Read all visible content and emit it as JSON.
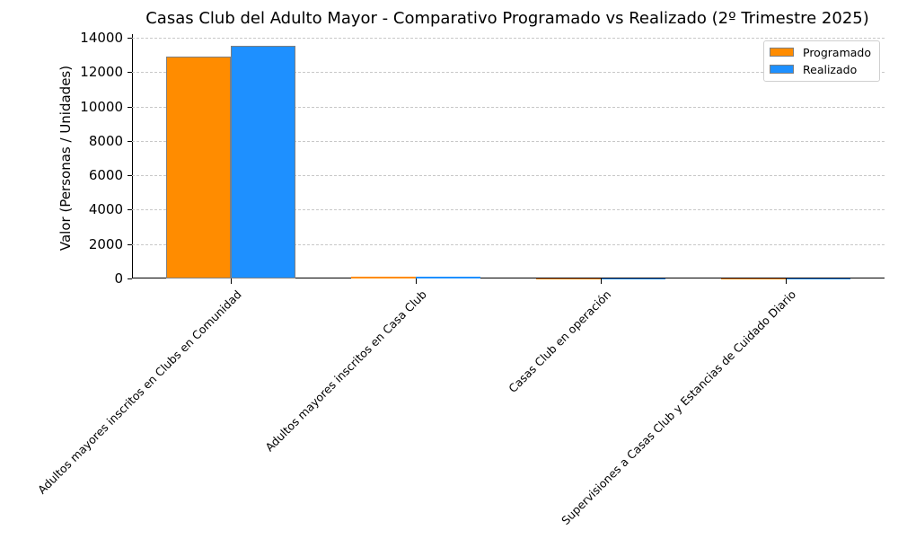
{
  "chart_data": {
    "type": "bar",
    "title": "Casas Club del Adulto Mayor - Comparativo Programado vs Realizado (2º Trimestre 2025)",
    "xlabel": "",
    "ylabel": "Valor (Personas / Unidades)",
    "ylim": [
      0,
      14000
    ],
    "yticks": [
      "0",
      "2000",
      "4000",
      "6000",
      "8000",
      "10000",
      "12000",
      "14000"
    ],
    "grid": true,
    "legend_position": "upper right",
    "categories": [
      "Adultos mayores inscritos en Clubs en Comunidad",
      "Adultos mayores inscritos en Casa Club",
      "Casas Club en operación",
      "Supervisiones a Casas Club y Estancias de Cuidado Diario"
    ],
    "series": [
      {
        "name": "Programado",
        "color": "#ff8c00",
        "values": [
          12900,
          100,
          10,
          10
        ]
      },
      {
        "name": "Realizado",
        "color": "#1e90ff",
        "values": [
          13530,
          100,
          10,
          10
        ]
      }
    ]
  }
}
